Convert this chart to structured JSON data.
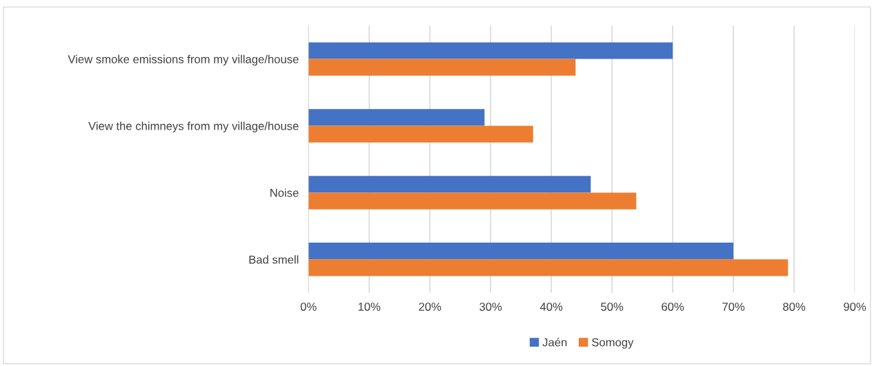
{
  "chart_data": {
    "type": "bar",
    "orientation": "horizontal",
    "categories": [
      "View smoke emissions from my village/house",
      "View the chimneys from my village/house",
      "Noise",
      "Bad smell"
    ],
    "series": [
      {
        "name": "Jaén",
        "color": "#4472c4",
        "values": [
          60,
          29,
          46.5,
          70
        ]
      },
      {
        "name": "Somogy",
        "color": "#ed7d31",
        "values": [
          44,
          37,
          54,
          79
        ]
      }
    ],
    "xlim": [
      0,
      90
    ],
    "xticks": [
      {
        "value": 0,
        "label": "0%"
      },
      {
        "value": 10,
        "label": "10%"
      },
      {
        "value": 20,
        "label": "20%"
      },
      {
        "value": 30,
        "label": "30%"
      },
      {
        "value": 40,
        "label": "40%"
      },
      {
        "value": 50,
        "label": "50%"
      },
      {
        "value": 60,
        "label": "60%"
      },
      {
        "value": 70,
        "label": "70%"
      },
      {
        "value": 80,
        "label": "80%"
      },
      {
        "value": 90,
        "label": "90%"
      }
    ],
    "grid": "x",
    "legend": "bottom"
  }
}
